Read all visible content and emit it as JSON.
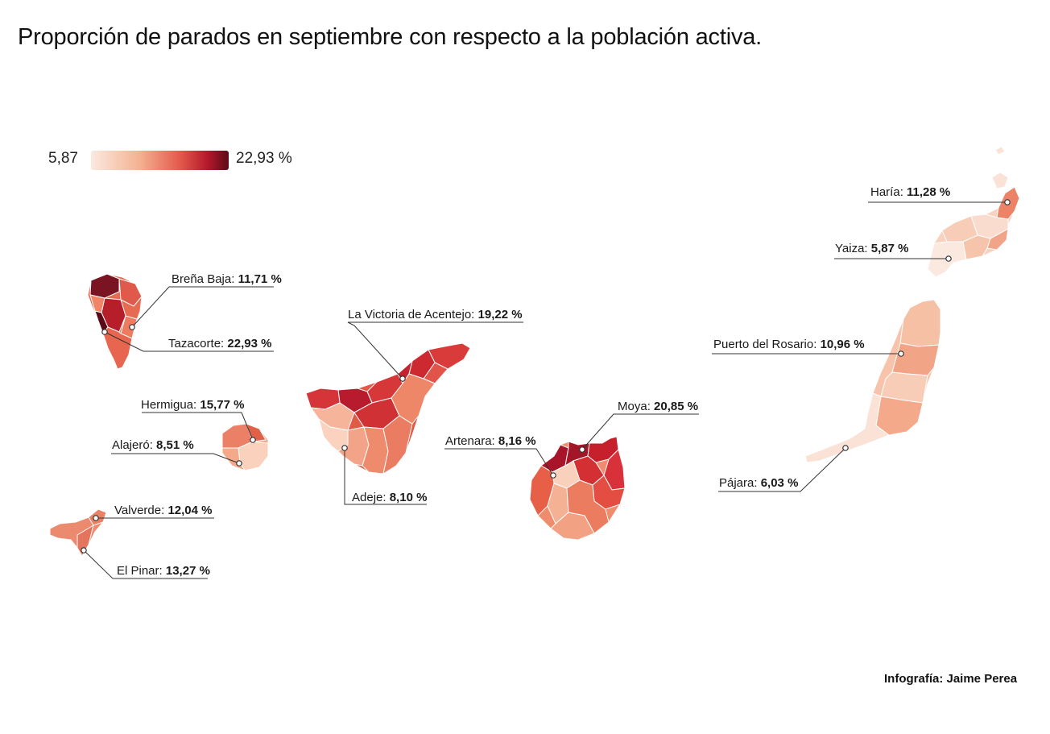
{
  "title": "Proporción de parados en septiembre con respecto a la población activa.",
  "legend": {
    "min_label": "5,87",
    "max_label": "22,93 %",
    "min_value": 5.87,
    "max_value": 22.93,
    "colors": [
      "#fbe9e0",
      "#f3b392",
      "#e4584a",
      "#b2182b",
      "#5c0a16"
    ]
  },
  "islands": [
    {
      "name": "La Palma"
    },
    {
      "name": "La Gomera"
    },
    {
      "name": "El Hierro"
    },
    {
      "name": "Tenerife"
    },
    {
      "name": "Gran Canaria"
    },
    {
      "name": "Fuerteventura"
    },
    {
      "name": "Lanzarote"
    }
  ],
  "municipalities": [
    {
      "name": "Breña Baja",
      "value_label": "11,71 %",
      "value": 11.71
    },
    {
      "name": "Tazacorte",
      "value_label": "22,93 %",
      "value": 22.93
    },
    {
      "name": "Hermigua",
      "value_label": "15,77 %",
      "value": 15.77
    },
    {
      "name": "Alajeró",
      "value_label": "8,51 %",
      "value": 8.51
    },
    {
      "name": "Valverde",
      "value_label": "12,04 %",
      "value": 12.04
    },
    {
      "name": "El Pinar",
      "value_label": "13,27 %",
      "value": 13.27
    },
    {
      "name": "La Victoria de Acentejo",
      "value_label": "19,22 %",
      "value": 19.22
    },
    {
      "name": "Adeje",
      "value_label": "8,10 %",
      "value": 8.1
    },
    {
      "name": "Artenara",
      "value_label": "8,16 %",
      "value": 8.16
    },
    {
      "name": "Moya",
      "value_label": "20,85 %",
      "value": 20.85
    },
    {
      "name": "Haría",
      "value_label": "11,28 %",
      "value": 11.28
    },
    {
      "name": "Yaiza",
      "value_label": "5,87 %",
      "value": 5.87
    },
    {
      "name": "Puerto del Rosario",
      "value_label": "10,96 %",
      "value": 10.96
    },
    {
      "name": "Pájara",
      "value_label": "6,03 %",
      "value": 6.03
    }
  ],
  "credit": "Infografía: Jaime Perea"
}
